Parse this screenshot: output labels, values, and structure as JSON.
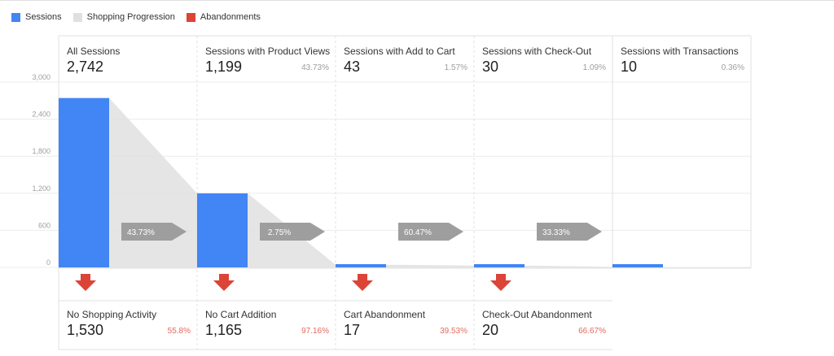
{
  "legend": {
    "sessions": "Sessions",
    "progression": "Shopping Progression",
    "abandonments": "Abandonments"
  },
  "colors": {
    "sessions": "#4285f4",
    "progression": "#e0e0e0",
    "abandonments": "#db4437",
    "arrow": "#9e9e9e"
  },
  "stages": [
    {
      "label": "All Sessions",
      "value": "2,742",
      "pct": ""
    },
    {
      "label": "Sessions with Product Views",
      "value": "1,199",
      "pct": "43.73%"
    },
    {
      "label": "Sessions with Add to Cart",
      "value": "43",
      "pct": "1.57%"
    },
    {
      "label": "Sessions with Check-Out",
      "value": "30",
      "pct": "1.09%"
    },
    {
      "label": "Sessions with Transactions",
      "value": "10",
      "pct": "0.36%"
    }
  ],
  "abandonments": [
    {
      "label": "No Shopping Activity",
      "value": "1,530",
      "pct": "55.8%"
    },
    {
      "label": "No Cart Addition",
      "value": "1,165",
      "pct": "97.16%"
    },
    {
      "label": "Cart Abandonment",
      "value": "17",
      "pct": "39.53%"
    },
    {
      "label": "Check-Out Abandonment",
      "value": "20",
      "pct": "66.67%"
    }
  ],
  "chart_data": {
    "type": "bar",
    "title": "",
    "xlabel": "",
    "ylabel": "",
    "categories": [
      "All Sessions",
      "Sessions with Product Views",
      "Sessions with Add to Cart",
      "Sessions with Check-Out",
      "Sessions with Transactions"
    ],
    "values": [
      2742,
      1199,
      43,
      30,
      10
    ],
    "progression_labels": [
      "43.73%",
      "2.75%",
      "60.47%",
      "33.33%"
    ],
    "yticks": [
      0,
      600,
      1200,
      1800,
      2400,
      3000
    ],
    "ytick_labels": [
      "0",
      "600",
      "1,200",
      "1,800",
      "2,400",
      "3,000"
    ],
    "ylim": [
      0,
      3000
    ],
    "grid": true
  }
}
